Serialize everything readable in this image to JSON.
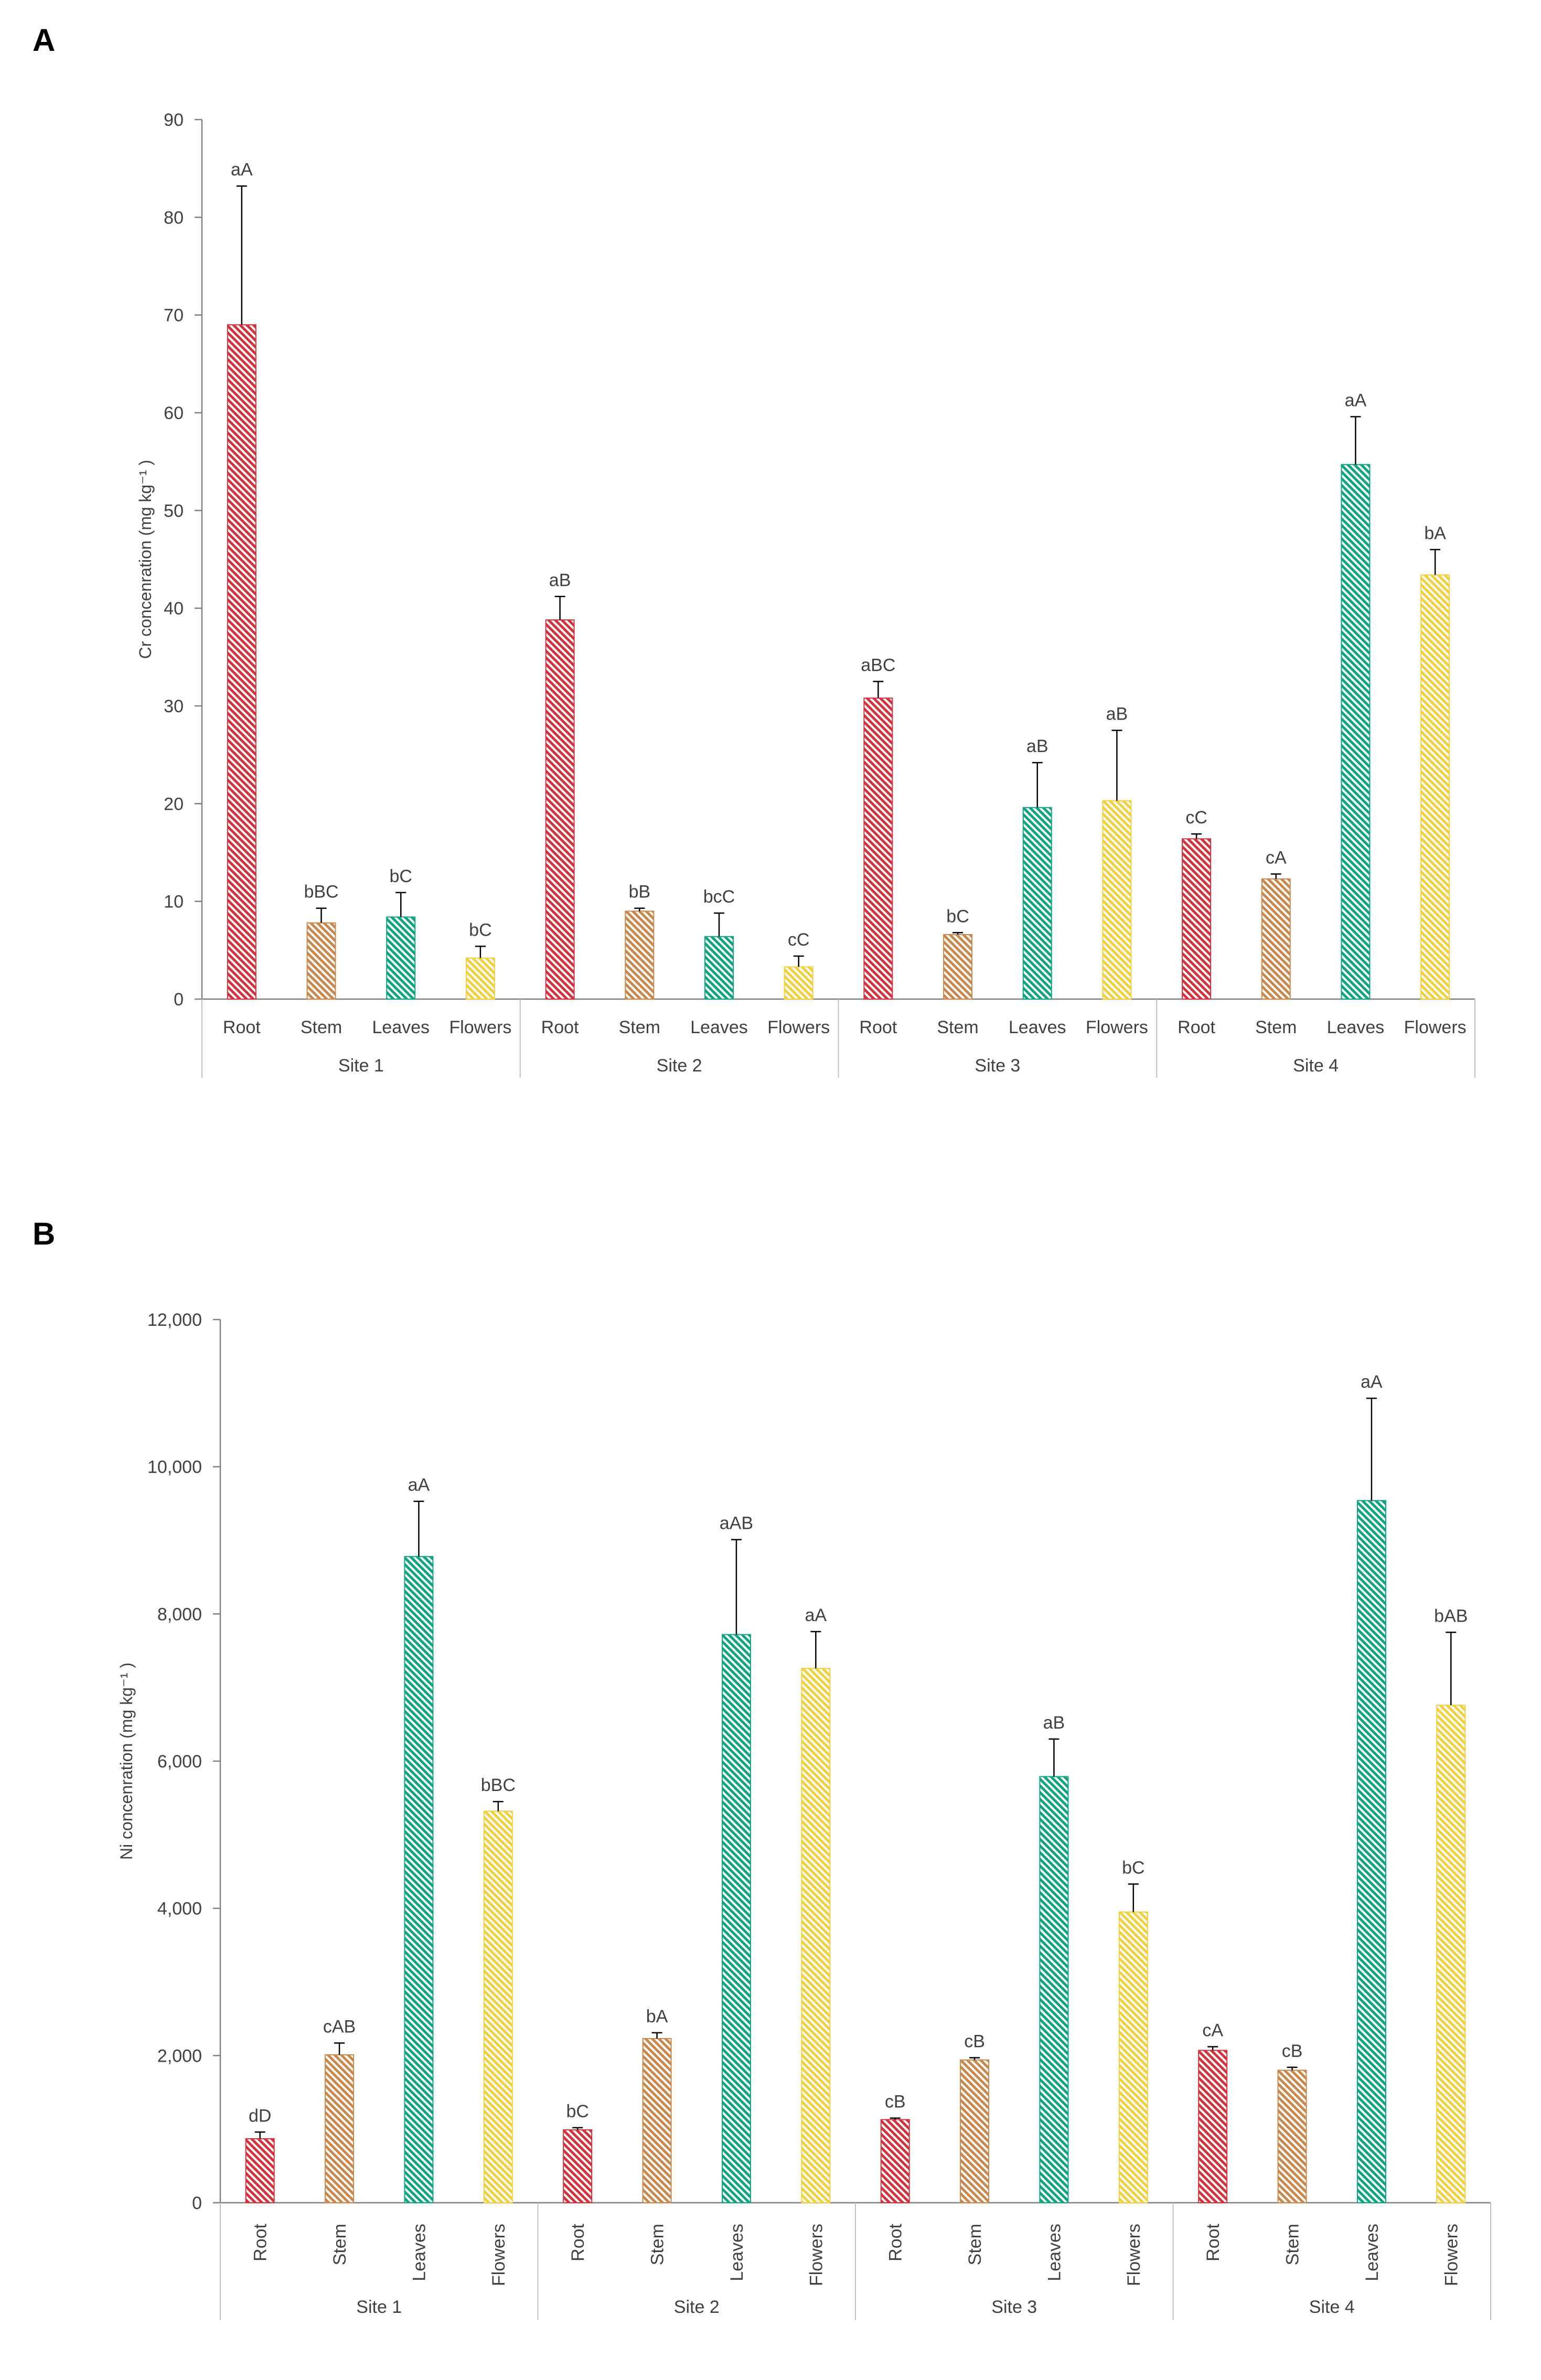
{
  "panels": [
    {
      "letter": "A"
    },
    {
      "letter": "B"
    }
  ],
  "colors": {
    "Root": "#d0343f",
    "Stem": "#c8884e",
    "Leaves": "#12a383",
    "Flowers": "#f0d040",
    "axis": "#808080",
    "text": "#404040"
  },
  "chart_data": [
    {
      "type": "bar",
      "title": "",
      "xlabel": "",
      "ylabel": "Cr concenration (mg kg⁻¹ )",
      "ylim": [
        0,
        90
      ],
      "yticks": [
        "0",
        "10",
        "20",
        "30",
        "40",
        "50",
        "60",
        "70",
        "80",
        "90"
      ],
      "ytick_values": [
        0,
        10,
        20,
        30,
        40,
        50,
        60,
        70,
        80,
        90
      ],
      "groups": [
        "Site 1",
        "Site 2",
        "Site 3",
        "Site 4"
      ],
      "categories": [
        "Root",
        "Stem",
        "Leaves",
        "Flowers"
      ],
      "tick_rotation": "horizontal",
      "grid": false,
      "legend": "none",
      "values": [
        [
          69.0,
          7.8,
          8.4,
          4.2
        ],
        [
          38.8,
          9.0,
          6.4,
          3.3
        ],
        [
          30.8,
          6.6,
          19.6,
          20.3
        ],
        [
          16.4,
          12.3,
          54.7,
          43.4
        ]
      ],
      "errors": [
        [
          14.2,
          1.5,
          2.5,
          1.2
        ],
        [
          2.4,
          0.3,
          2.4,
          1.1
        ],
        [
          1.7,
          0.2,
          4.6,
          7.2
        ],
        [
          0.5,
          0.5,
          4.9,
          2.6
        ]
      ],
      "letters": [
        [
          "aA",
          "bBC",
          "bC",
          "bC"
        ],
        [
          "aB",
          "bB",
          "bcC",
          "cC"
        ],
        [
          "aBC",
          "bC",
          "aB",
          "aB"
        ],
        [
          "cC",
          "cA",
          "aA",
          "bA"
        ]
      ]
    },
    {
      "type": "bar",
      "title": "",
      "xlabel": "",
      "ylabel": "Ni concenration (mg kg⁻¹ )",
      "ylim": [
        0,
        12000
      ],
      "yticks": [
        "0",
        "2,000",
        "4,000",
        "6,000",
        "8,000",
        "10,000",
        "12,000"
      ],
      "ytick_values": [
        0,
        2000,
        4000,
        6000,
        8000,
        10000,
        12000
      ],
      "groups": [
        "Site 1",
        "Site 2",
        "Site 3",
        "Site 4"
      ],
      "categories": [
        "Root",
        "Stem",
        "Leaves",
        "Flowers"
      ],
      "tick_rotation": "vertical",
      "grid": false,
      "legend": "none",
      "values": [
        [
          870,
          2010,
          8780,
          5320
        ],
        [
          990,
          2230,
          7720,
          7260
        ],
        [
          1130,
          1940,
          5790,
          3950
        ],
        [
          2070,
          1800,
          9540,
          6760
        ]
      ],
      "errors": [
        [
          90,
          160,
          750,
          130
        ],
        [
          30,
          80,
          1290,
          500
        ],
        [
          20,
          30,
          510,
          380
        ],
        [
          50,
          40,
          1390,
          990
        ]
      ],
      "letters": [
        [
          "dD",
          "cAB",
          "aA",
          "bBC"
        ],
        [
          "bC",
          "bA",
          "aAB",
          "aA"
        ],
        [
          "cB",
          "cB",
          "aB",
          "bC"
        ],
        [
          "cA",
          "cB",
          "aA",
          "bAB"
        ]
      ]
    }
  ]
}
